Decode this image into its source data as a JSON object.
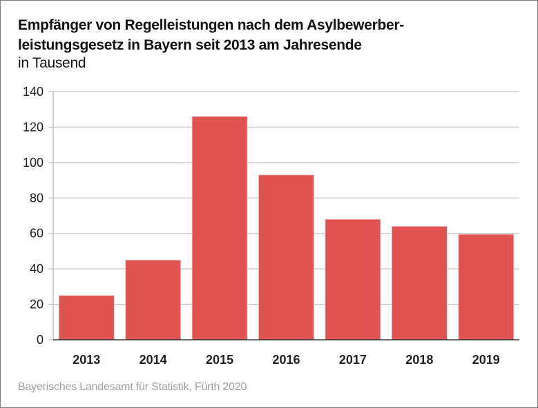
{
  "chart_data": {
    "type": "bar",
    "title": "Empfänger von Regelleistungen nach dem Asylbewerber-leistungsgesetz in Bayern seit 2013 am Jahresende",
    "title_lines": [
      "Empfänger von Regelleistungen nach dem Asylbewerber-",
      "leistungsgesetz in Bayern seit 2013 am Jahresende"
    ],
    "subtitle": "in Tausend",
    "xlabel": "",
    "ylabel": "",
    "categories": [
      "2013",
      "2014",
      "2015",
      "2016",
      "2017",
      "2018",
      "2019"
    ],
    "values": [
      25,
      45,
      126,
      93,
      68,
      64,
      59.5
    ],
    "ylim": [
      0,
      140
    ],
    "yticks": [
      0,
      20,
      40,
      60,
      80,
      100,
      120,
      140
    ],
    "ytick_labels": [
      "0",
      "20",
      "40",
      "60",
      "80",
      "100",
      "120",
      "140"
    ],
    "grid": true,
    "legend": "none",
    "bar_color": "#e05350",
    "source": "Bayerisches Landesamt für Statistik, Fürth 2020"
  }
}
